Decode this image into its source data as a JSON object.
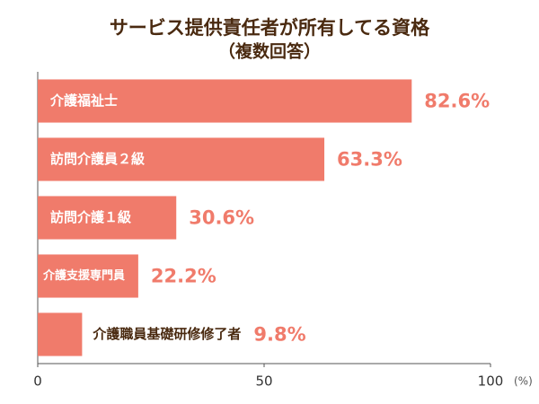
{
  "chart_data": {
    "type": "bar",
    "orientation": "horizontal",
    "title": "サービス提供責任者が所有してる資格",
    "subtitle": "（複数回答）",
    "categories": [
      "介護福祉士",
      "訪問介護員２級",
      "訪問介護１級",
      "介護支援専門員",
      "介護職員基礎研修修了者"
    ],
    "values": [
      82.6,
      63.3,
      30.6,
      22.2,
      9.8
    ],
    "value_labels": [
      "82.6%",
      "63.3%",
      "30.6%",
      "22.2%",
      "9.8%"
    ],
    "color": "#f07b6b",
    "xlim": [
      0,
      100
    ],
    "xticks": [
      0,
      50,
      100
    ],
    "x_unit": "(%)"
  }
}
